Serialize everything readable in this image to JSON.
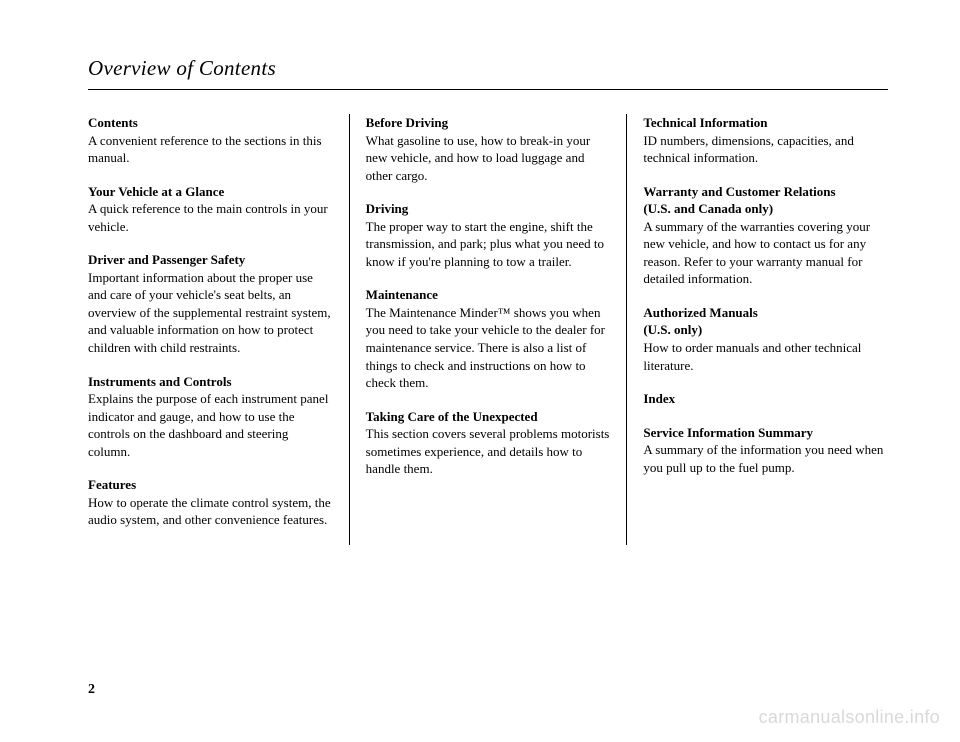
{
  "page": {
    "title": "Overview of Contents",
    "number": "2",
    "watermark": "carmanualsonline.info",
    "background_color": "#ffffff",
    "text_color": "#000000",
    "watermark_color": "#d9d9d9",
    "title_fontsize_pt": 21,
    "body_fontsize_pt": 13
  },
  "columns": [
    {
      "sections": [
        {
          "title": "Contents",
          "body": "A convenient reference to the sections in this manual."
        },
        {
          "title": "Your Vehicle at a Glance",
          "body": "A quick reference to the main controls in your vehicle."
        },
        {
          "title": "Driver and Passenger Safety",
          "body": "Important information about the proper use and care of your vehicle's seat belts, an overview of the supplemental restraint system, and valuable information on how to protect children with child restraints."
        },
        {
          "title": "Instruments and Controls",
          "body": "Explains the purpose of each instrument panel indicator and gauge, and how to use the controls on the dashboard and steering column."
        },
        {
          "title": "Features",
          "body": "How to operate the climate control system, the audio system, and other convenience features."
        }
      ]
    },
    {
      "sections": [
        {
          "title": "Before Driving",
          "body": "What gasoline to use, how to break-in your new vehicle, and how to load luggage and other cargo."
        },
        {
          "title": "Driving",
          "body": "The proper way to start the engine, shift the transmission, and park; plus what you need to know if you're planning to tow a trailer."
        },
        {
          "title": "Maintenance",
          "body": "The Maintenance Minder™ shows you when you need to take your vehicle to the dealer for maintenance service. There is also a list of things to check and instructions on how to check them."
        },
        {
          "title": "Taking Care of the Unexpected",
          "body": "This section covers several problems motorists sometimes experience, and details how to handle them."
        }
      ]
    },
    {
      "sections": [
        {
          "title": "Technical Information",
          "body": "ID numbers, dimensions, capacities, and technical information."
        },
        {
          "title": "Warranty and Customer Relations",
          "subtitle": "(U.S. and Canada only)",
          "body": "A summary of the warranties covering your new vehicle, and how to contact us for any reason. Refer to your warranty manual for detailed information."
        },
        {
          "title": "Authorized Manuals",
          "subtitle": "(U.S. only)",
          "body": "How to order manuals and other technical literature."
        },
        {
          "title": "Index",
          "body": ""
        },
        {
          "title": "Service Information Summary",
          "body": "A summary of the information you need when you pull up to the fuel pump."
        }
      ]
    }
  ]
}
